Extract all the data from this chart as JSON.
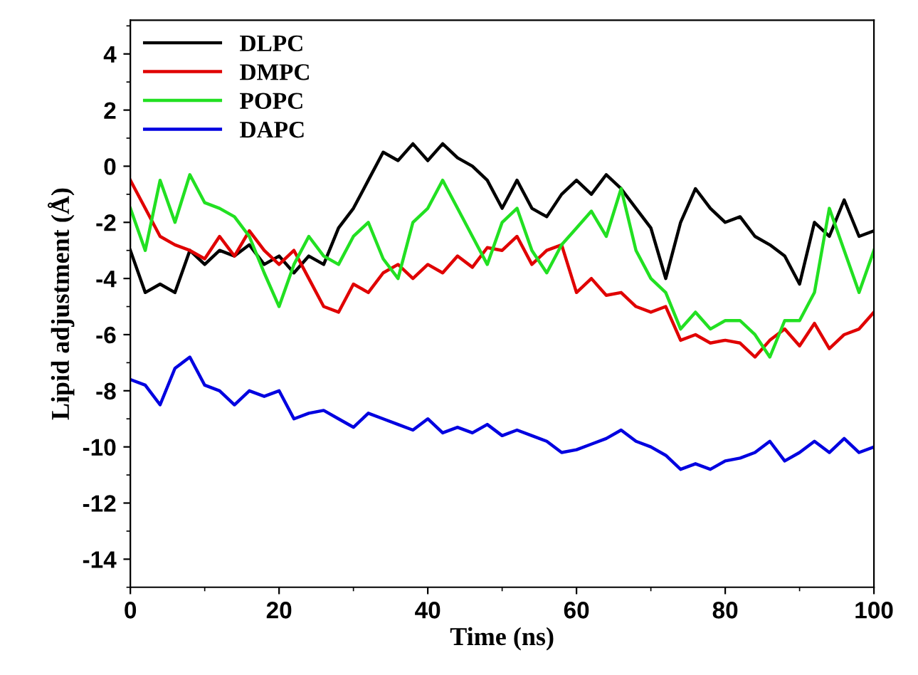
{
  "chart_data": {
    "type": "line",
    "xlabel": "Time (ns)",
    "ylabel": "Lipid adjustment (Å)",
    "x": [
      0,
      2,
      4,
      6,
      8,
      10,
      12,
      14,
      16,
      18,
      20,
      22,
      24,
      26,
      28,
      30,
      32,
      34,
      36,
      38,
      40,
      42,
      44,
      46,
      48,
      50,
      52,
      54,
      56,
      58,
      60,
      62,
      64,
      66,
      68,
      70,
      72,
      74,
      76,
      78,
      80,
      82,
      84,
      86,
      88,
      90,
      92,
      94,
      96,
      98,
      100
    ],
    "series": [
      {
        "name": "DLPC",
        "color": "#000000",
        "values": [
          -3,
          -4.5,
          -4.2,
          -4.5,
          -3,
          -3.5,
          -3,
          -3.2,
          -2.8,
          -3.5,
          -3.2,
          -3.8,
          -3.2,
          -3.5,
          -2.2,
          -1.5,
          -0.5,
          0.5,
          0.2,
          0.8,
          0.2,
          0.8,
          0.3,
          0,
          -0.5,
          -1.5,
          -0.5,
          -1.5,
          -1.8,
          -1,
          -0.5,
          -1,
          -0.3,
          -0.8,
          -1.5,
          -2.2,
          -4,
          -2,
          -0.8,
          -1.5,
          -2,
          -1.8,
          -2.5,
          -2.8,
          -3.2,
          -4.2,
          -2,
          -2.5,
          -1.2,
          -2.5,
          -2.3
        ]
      },
      {
        "name": "DMPC",
        "color": "#e00000",
        "values": [
          -0.5,
          -1.5,
          -2.5,
          -2.8,
          -3,
          -3.3,
          -2.5,
          -3.2,
          -2.3,
          -3,
          -3.5,
          -3,
          -4,
          -5,
          -5.2,
          -4.2,
          -4.5,
          -3.8,
          -3.5,
          -4,
          -3.5,
          -3.8,
          -3.2,
          -3.6,
          -2.9,
          -3,
          -2.5,
          -3.5,
          -3,
          -2.8,
          -4.5,
          -4,
          -4.6,
          -4.5,
          -5,
          -5.2,
          -5,
          -6.2,
          -6,
          -6.3,
          -6.2,
          -6.3,
          -6.8,
          -6.2,
          -5.8,
          -6.4,
          -5.6,
          -6.5,
          -6,
          -5.8,
          -5.2
        ]
      },
      {
        "name": "POPC",
        "color": "#22e022",
        "values": [
          -1.5,
          -3,
          -0.5,
          -2,
          -0.3,
          -1.3,
          -1.5,
          -1.8,
          -2.5,
          -3.8,
          -5,
          -3.5,
          -2.5,
          -3.2,
          -3.5,
          -2.5,
          -2,
          -3.3,
          -4,
          -2,
          -1.5,
          -0.5,
          -1.5,
          -2.5,
          -3.5,
          -2,
          -1.5,
          -3,
          -3.8,
          -2.8,
          -2.2,
          -1.6,
          -2.5,
          -0.8,
          -3,
          -4,
          -4.5,
          -5.8,
          -5.2,
          -5.8,
          -5.5,
          -5.5,
          -6,
          -6.8,
          -5.5,
          -5.5,
          -4.5,
          -1.5,
          -3,
          -4.5,
          -3
        ]
      },
      {
        "name": "DAPC",
        "color": "#0000e0",
        "values": [
          -7.6,
          -7.8,
          -8.5,
          -7.2,
          -6.8,
          -7.8,
          -8,
          -8.5,
          -8,
          -8.2,
          -8,
          -9,
          -8.8,
          -8.7,
          -9,
          -9.3,
          -8.8,
          -9,
          -9.2,
          -9.4,
          -9,
          -9.5,
          -9.3,
          -9.5,
          -9.2,
          -9.6,
          -9.4,
          -9.6,
          -9.8,
          -10.2,
          -10.1,
          -9.9,
          -9.7,
          -9.4,
          -9.8,
          -10,
          -10.3,
          -10.8,
          -10.6,
          -10.8,
          -10.5,
          -10.4,
          -10.2,
          -9.8,
          -10.5,
          -10.2,
          -9.8,
          -10.2,
          -9.7,
          -10.2,
          -10
        ]
      }
    ],
    "xlim": [
      0,
      100
    ],
    "xticks": [
      0,
      20,
      40,
      60,
      80,
      100
    ],
    "ylim": [
      -15,
      5.2
    ],
    "yticks": [
      -14,
      -12,
      -10,
      -8,
      -6,
      -4,
      -2,
      0,
      2,
      4
    ],
    "legend": "top left",
    "grid": false,
    "marker": "none",
    "line_style": "solid"
  }
}
